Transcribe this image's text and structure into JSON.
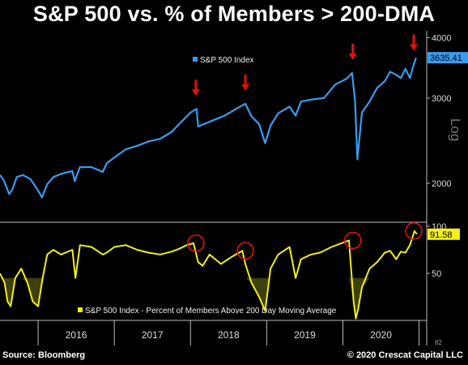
{
  "title": "S&P 500 vs. % of Members > 200-DMA",
  "footer": {
    "source": "Source: Bloomberg",
    "copyright": "© 2020 Crescat Capital LLC"
  },
  "colors": {
    "spx_line": "#3a9bf0",
    "breadth_line": "#f2ef1a",
    "arrow": "#e01010",
    "circle": "#e01010",
    "axis": "#bbbbbb"
  },
  "chart_data": [
    {
      "type": "line",
      "title": "",
      "scale": "log",
      "ylabel": "Log",
      "ylim": [
        1700,
        4100
      ],
      "y_ticks": [
        "4000",
        "3000",
        "2000"
      ],
      "series": [
        {
          "name": "S&P 500 Index",
          "x": [
            2015.5,
            2015.55,
            2015.62,
            2015.66,
            2015.72,
            2015.8,
            2015.9,
            2016.0,
            2016.05,
            2016.12,
            2016.2,
            2016.3,
            2016.45,
            2016.48,
            2016.55,
            2016.7,
            2016.85,
            2016.9,
            2017.0,
            2017.15,
            2017.3,
            2017.45,
            2017.6,
            2017.75,
            2017.85,
            2018.0,
            2018.08,
            2018.1,
            2018.2,
            2018.3,
            2018.45,
            2018.6,
            2018.72,
            2018.8,
            2018.9,
            2018.98,
            2019.05,
            2019.15,
            2019.3,
            2019.38,
            2019.45,
            2019.6,
            2019.75,
            2019.9,
            2020.05,
            2020.12,
            2020.16,
            2020.19,
            2020.25,
            2020.35,
            2020.45,
            2020.55,
            2020.62,
            2020.7,
            2020.76,
            2020.82,
            2020.88,
            2020.92,
            2020.96
          ],
          "values": [
            2080,
            2030,
            1900,
            1940,
            2060,
            2080,
            2040,
            1930,
            1870,
            1990,
            2060,
            2090,
            2120,
            2020,
            2160,
            2160,
            2110,
            2200,
            2260,
            2350,
            2390,
            2440,
            2470,
            2550,
            2650,
            2800,
            2850,
            2620,
            2660,
            2700,
            2760,
            2850,
            2920,
            2750,
            2650,
            2420,
            2630,
            2790,
            2880,
            2760,
            2950,
            2980,
            3000,
            3200,
            3290,
            3380,
            2960,
            2240,
            2800,
            2950,
            3150,
            3250,
            3400,
            3350,
            3300,
            3450,
            3300,
            3480,
            3635.41
          ]
        }
      ],
      "last_value": "3635.41",
      "annotations": [
        "peak-arrow-2018-jan",
        "peak-arrow-2018-sep",
        "peak-arrow-2020-feb",
        "peak-arrow-2020-nov"
      ]
    },
    {
      "type": "line",
      "title": "",
      "ylim": [
        0,
        100
      ],
      "y_ticks": [
        "100",
        "50"
      ],
      "series": [
        {
          "name": "S&P 500 Index - Percent of Members Above 200 Day Moving Average",
          "x": [
            2015.5,
            2015.56,
            2015.6,
            2015.64,
            2015.7,
            2015.78,
            2015.86,
            2015.93,
            2016.0,
            2016.06,
            2016.12,
            2016.2,
            2016.3,
            2016.45,
            2016.49,
            2016.55,
            2016.7,
            2016.85,
            2016.9,
            2017.0,
            2017.15,
            2017.3,
            2017.45,
            2017.6,
            2017.75,
            2017.85,
            2017.95,
            2018.04,
            2018.1,
            2018.16,
            2018.25,
            2018.4,
            2018.55,
            2018.68,
            2018.72,
            2018.8,
            2018.9,
            2018.98,
            2019.05,
            2019.15,
            2019.3,
            2019.38,
            2019.45,
            2019.58,
            2019.7,
            2019.85,
            2019.98,
            2020.08,
            2020.14,
            2020.17,
            2020.2,
            2020.25,
            2020.35,
            2020.45,
            2020.55,
            2020.62,
            2020.7,
            2020.76,
            2020.82,
            2020.88,
            2020.94,
            2020.97
          ],
          "values": [
            50,
            40,
            20,
            15,
            45,
            55,
            40,
            20,
            15,
            45,
            70,
            75,
            70,
            75,
            45,
            80,
            78,
            70,
            72,
            78,
            80,
            75,
            72,
            70,
            73,
            76,
            80,
            82,
            62,
            58,
            70,
            60,
            68,
            74,
            60,
            40,
            25,
            10,
            55,
            70,
            78,
            45,
            65,
            70,
            72,
            78,
            82,
            85,
            20,
            2,
            12,
            35,
            55,
            62,
            72,
            74,
            65,
            73,
            72,
            80,
            95,
            91.58
          ]
        }
      ],
      "last_value": "91.58",
      "annotations": [
        "peak-circle-2018-jan",
        "peak-circle-2018-sep",
        "peak-circle-2020-feb",
        "peak-circle-2020-nov"
      ]
    }
  ],
  "x_axis": {
    "xlim": [
      2015.5,
      2021.1
    ],
    "year_labels": [
      "2016",
      "2017",
      "2018",
      "2019",
      "2020"
    ],
    "year_centers": [
      2016.5,
      2017.5,
      2018.5,
      2019.5,
      2020.5
    ],
    "year_boundaries": [
      2016,
      2017,
      2018,
      2019,
      2020,
      2021
    ],
    "corner_label": "82"
  },
  "peaks": [
    2018.07,
    2018.72,
    2020.13,
    2020.93
  ]
}
